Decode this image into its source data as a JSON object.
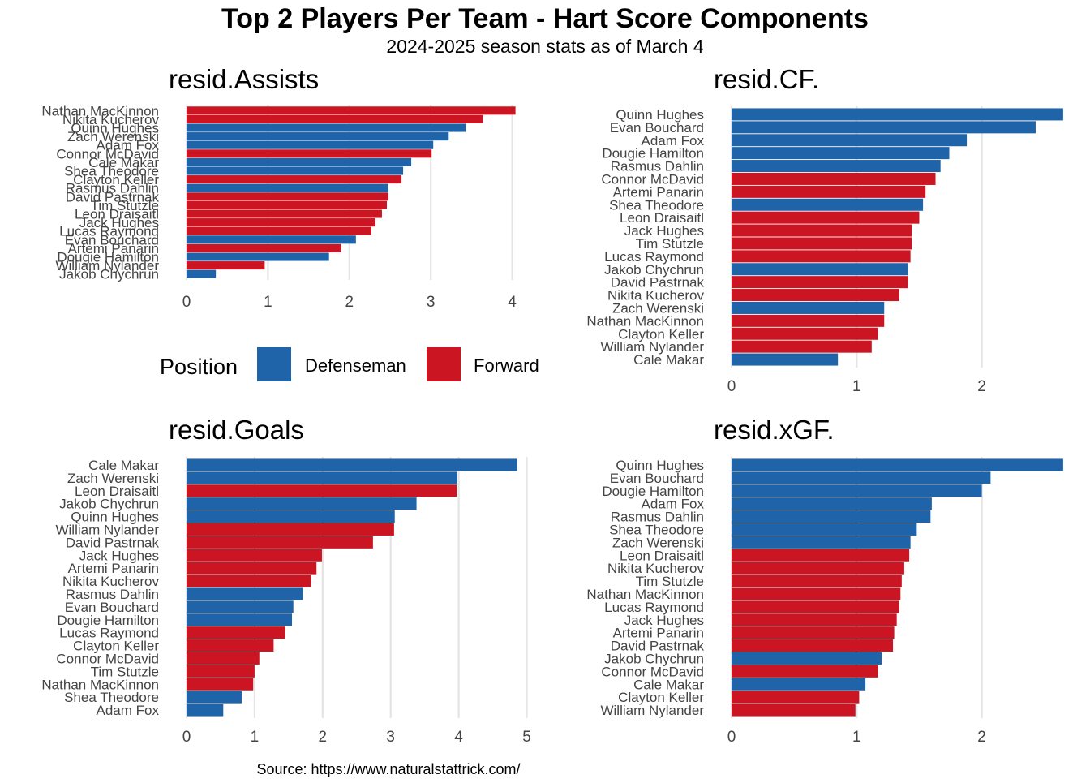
{
  "title": "Top 2 Players Per Team - Hart Score Components",
  "subtitle": "2024-2025 season stats as of March 4",
  "caption": "Source: https://www.naturalstattrick.com/",
  "colors": {
    "Defenseman": "#1f63a8",
    "Forward": "#cc1522",
    "grid": "#e4e4e4"
  },
  "legend": {
    "title": "Position",
    "items": [
      {
        "label": "Defenseman",
        "color": "#1f63a8"
      },
      {
        "label": "Forward",
        "color": "#cc1522"
      }
    ]
  },
  "chart_data": [
    {
      "type": "bar",
      "orientation": "horizontal",
      "title": "resid.Assists",
      "xlim": [
        0,
        4.2
      ],
      "xticks": [
        0,
        1,
        2,
        3,
        4
      ],
      "bars": [
        {
          "player": "Nathan MacKinnon",
          "value": 4.04,
          "position": "Forward"
        },
        {
          "player": "Nikita Kucherov",
          "value": 3.64,
          "position": "Forward"
        },
        {
          "player": "Quinn Hughes",
          "value": 3.43,
          "position": "Defenseman"
        },
        {
          "player": "Zach Werenski",
          "value": 3.22,
          "position": "Defenseman"
        },
        {
          "player": "Adam Fox",
          "value": 3.03,
          "position": "Defenseman"
        },
        {
          "player": "Connor McDavid",
          "value": 3.01,
          "position": "Forward"
        },
        {
          "player": "Cale Makar",
          "value": 2.76,
          "position": "Defenseman"
        },
        {
          "player": "Shea Theodore",
          "value": 2.66,
          "position": "Defenseman"
        },
        {
          "player": "Clayton Keller",
          "value": 2.64,
          "position": "Forward"
        },
        {
          "player": "Rasmus Dahlin",
          "value": 2.48,
          "position": "Defenseman"
        },
        {
          "player": "David Pastrnak",
          "value": 2.48,
          "position": "Forward"
        },
        {
          "player": "Tim Stutzle",
          "value": 2.46,
          "position": "Forward"
        },
        {
          "player": "Leon Draisaitl",
          "value": 2.4,
          "position": "Forward"
        },
        {
          "player": "Jack Hughes",
          "value": 2.32,
          "position": "Forward"
        },
        {
          "player": "Lucas Raymond",
          "value": 2.27,
          "position": "Forward"
        },
        {
          "player": "Evan Bouchard",
          "value": 2.08,
          "position": "Defenseman"
        },
        {
          "player": "Artemi Panarin",
          "value": 1.9,
          "position": "Forward"
        },
        {
          "player": "Dougie Hamilton",
          "value": 1.75,
          "position": "Defenseman"
        },
        {
          "player": "William Nylander",
          "value": 0.96,
          "position": "Forward"
        },
        {
          "player": "Jakob Chychrun",
          "value": 0.36,
          "position": "Defenseman"
        }
      ]
    },
    {
      "type": "bar",
      "orientation": "horizontal",
      "title": "resid.CF.",
      "xlim": [
        0,
        2.65
      ],
      "xticks": [
        0,
        1,
        2
      ],
      "bars": [
        {
          "player": "Quinn Hughes",
          "value": 2.65,
          "position": "Defenseman"
        },
        {
          "player": "Evan Bouchard",
          "value": 2.43,
          "position": "Defenseman"
        },
        {
          "player": "Adam Fox",
          "value": 1.88,
          "position": "Defenseman"
        },
        {
          "player": "Dougie Hamilton",
          "value": 1.74,
          "position": "Defenseman"
        },
        {
          "player": "Rasmus Dahlin",
          "value": 1.67,
          "position": "Defenseman"
        },
        {
          "player": "Connor McDavid",
          "value": 1.63,
          "position": "Forward"
        },
        {
          "player": "Artemi Panarin",
          "value": 1.55,
          "position": "Forward"
        },
        {
          "player": "Shea Theodore",
          "value": 1.53,
          "position": "Defenseman"
        },
        {
          "player": "Leon Draisaitl",
          "value": 1.5,
          "position": "Forward"
        },
        {
          "player": "Jack Hughes",
          "value": 1.44,
          "position": "Forward"
        },
        {
          "player": "Tim Stutzle",
          "value": 1.44,
          "position": "Forward"
        },
        {
          "player": "Lucas Raymond",
          "value": 1.43,
          "position": "Forward"
        },
        {
          "player": "Jakob Chychrun",
          "value": 1.41,
          "position": "Defenseman"
        },
        {
          "player": "David Pastrnak",
          "value": 1.41,
          "position": "Forward"
        },
        {
          "player": "Nikita Kucherov",
          "value": 1.34,
          "position": "Forward"
        },
        {
          "player": "Zach Werenski",
          "value": 1.22,
          "position": "Defenseman"
        },
        {
          "player": "Nathan MacKinnon",
          "value": 1.22,
          "position": "Forward"
        },
        {
          "player": "Clayton Keller",
          "value": 1.17,
          "position": "Forward"
        },
        {
          "player": "William Nylander",
          "value": 1.12,
          "position": "Forward"
        },
        {
          "player": "Cale Makar",
          "value": 0.85,
          "position": "Defenseman"
        }
      ]
    },
    {
      "type": "bar",
      "orientation": "horizontal",
      "title": "resid.Goals",
      "xlim": [
        0,
        5
      ],
      "xticks": [
        0,
        1,
        2,
        3,
        4,
        5
      ],
      "bars": [
        {
          "player": "Cale Makar",
          "value": 4.86,
          "position": "Defenseman"
        },
        {
          "player": "Zach Werenski",
          "value": 3.98,
          "position": "Defenseman"
        },
        {
          "player": "Leon Draisaitl",
          "value": 3.97,
          "position": "Forward"
        },
        {
          "player": "Jakob Chychrun",
          "value": 3.38,
          "position": "Defenseman"
        },
        {
          "player": "Quinn Hughes",
          "value": 3.06,
          "position": "Defenseman"
        },
        {
          "player": "William Nylander",
          "value": 3.05,
          "position": "Forward"
        },
        {
          "player": "David Pastrnak",
          "value": 2.74,
          "position": "Forward"
        },
        {
          "player": "Jack Hughes",
          "value": 1.99,
          "position": "Forward"
        },
        {
          "player": "Artemi Panarin",
          "value": 1.91,
          "position": "Forward"
        },
        {
          "player": "Nikita Kucherov",
          "value": 1.83,
          "position": "Forward"
        },
        {
          "player": "Rasmus Dahlin",
          "value": 1.71,
          "position": "Defenseman"
        },
        {
          "player": "Evan Bouchard",
          "value": 1.57,
          "position": "Defenseman"
        },
        {
          "player": "Dougie Hamilton",
          "value": 1.55,
          "position": "Defenseman"
        },
        {
          "player": "Lucas Raymond",
          "value": 1.45,
          "position": "Forward"
        },
        {
          "player": "Clayton Keller",
          "value": 1.28,
          "position": "Forward"
        },
        {
          "player": "Connor McDavid",
          "value": 1.07,
          "position": "Forward"
        },
        {
          "player": "Tim Stutzle",
          "value": 1.0,
          "position": "Forward"
        },
        {
          "player": "Nathan MacKinnon",
          "value": 0.98,
          "position": "Forward"
        },
        {
          "player": "Shea Theodore",
          "value": 0.81,
          "position": "Defenseman"
        },
        {
          "player": "Adam Fox",
          "value": 0.54,
          "position": "Defenseman"
        }
      ]
    },
    {
      "type": "bar",
      "orientation": "horizontal",
      "title": "resid.xGF.",
      "xlim": [
        0,
        2.65
      ],
      "xticks": [
        0,
        1,
        2
      ],
      "bars": [
        {
          "player": "Quinn Hughes",
          "value": 2.65,
          "position": "Defenseman"
        },
        {
          "player": "Evan Bouchard",
          "value": 2.07,
          "position": "Defenseman"
        },
        {
          "player": "Dougie Hamilton",
          "value": 2.0,
          "position": "Defenseman"
        },
        {
          "player": "Adam Fox",
          "value": 1.6,
          "position": "Defenseman"
        },
        {
          "player": "Rasmus Dahlin",
          "value": 1.59,
          "position": "Defenseman"
        },
        {
          "player": "Shea Theodore",
          "value": 1.48,
          "position": "Defenseman"
        },
        {
          "player": "Zach Werenski",
          "value": 1.43,
          "position": "Defenseman"
        },
        {
          "player": "Leon Draisaitl",
          "value": 1.42,
          "position": "Forward"
        },
        {
          "player": "Nikita Kucherov",
          "value": 1.38,
          "position": "Forward"
        },
        {
          "player": "Tim Stutzle",
          "value": 1.36,
          "position": "Forward"
        },
        {
          "player": "Nathan MacKinnon",
          "value": 1.35,
          "position": "Forward"
        },
        {
          "player": "Lucas Raymond",
          "value": 1.34,
          "position": "Forward"
        },
        {
          "player": "Jack Hughes",
          "value": 1.32,
          "position": "Forward"
        },
        {
          "player": "Artemi Panarin",
          "value": 1.3,
          "position": "Forward"
        },
        {
          "player": "David Pastrnak",
          "value": 1.29,
          "position": "Forward"
        },
        {
          "player": "Jakob Chychrun",
          "value": 1.2,
          "position": "Defenseman"
        },
        {
          "player": "Connor McDavid",
          "value": 1.17,
          "position": "Forward"
        },
        {
          "player": "Cale Makar",
          "value": 1.07,
          "position": "Defenseman"
        },
        {
          "player": "Clayton Keller",
          "value": 1.02,
          "position": "Forward"
        },
        {
          "player": "William Nylander",
          "value": 0.99,
          "position": "Forward"
        }
      ]
    }
  ]
}
